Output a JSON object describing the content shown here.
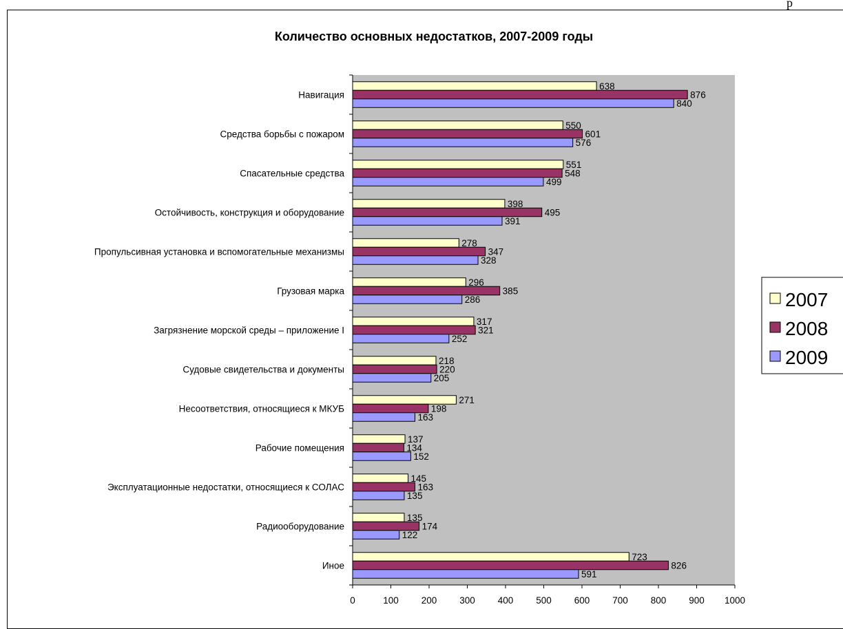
{
  "page_mark": "р",
  "colors": {
    "plot_background": "#c0c0c0",
    "series_2007": "#ffffcc",
    "series_2008": "#993366",
    "series_2009": "#9999ff",
    "bar_outline": "#000000"
  },
  "chart_data": {
    "type": "bar",
    "orientation": "horizontal",
    "title": "Количество основных недостатков, 2007-2009 годы",
    "categories": [
      "Навигация",
      "Средства борьбы с пожаром",
      "Спасательные средства",
      "Остойчивость, конструкция и оборудование",
      "Пропульсивная установка и вспомогательные механизмы",
      "Грузовая  марка",
      "Загрязнение морской среды – приложение I",
      "Судовые свидетельства и документы",
      "Несоответствия, относящиеся к МКУБ",
      "Рабочие помещения",
      "Эксплуатационные недостатки, относящиеся к СОЛАС",
      "Радиооборудование",
      "Иное"
    ],
    "series": [
      {
        "name": "2007",
        "values": [
          638,
          550,
          551,
          398,
          278,
          296,
          317,
          218,
          271,
          137,
          145,
          135,
          723
        ]
      },
      {
        "name": "2008",
        "values": [
          876,
          601,
          548,
          495,
          347,
          385,
          321,
          220,
          198,
          134,
          163,
          174,
          826
        ]
      },
      {
        "name": "2009",
        "values": [
          840,
          576,
          499,
          391,
          328,
          286,
          252,
          205,
          163,
          152,
          135,
          122,
          591
        ]
      }
    ],
    "xlim": [
      0,
      1000
    ],
    "x_ticks": [
      "0",
      "100",
      "200",
      "300",
      "400",
      "500",
      "600",
      "700",
      "800",
      "900",
      "1000"
    ],
    "grid": false,
    "legend": {
      "position": "right",
      "entries": [
        "2007",
        "2008",
        "2009"
      ]
    }
  }
}
